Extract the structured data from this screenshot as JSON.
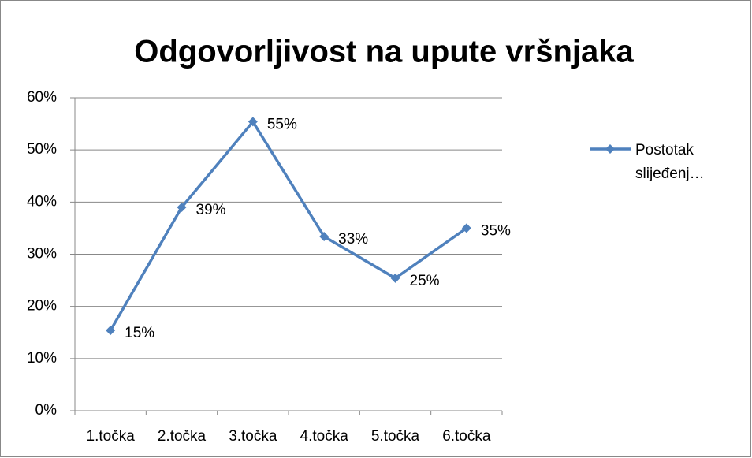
{
  "chart_data": {
    "type": "line",
    "title": "Odgovorljivost na upute vršnjaka",
    "categories": [
      "1.točka",
      "2.točka",
      "3.točka",
      "4.točka",
      "5.točka",
      "6.točka"
    ],
    "series": [
      {
        "name": "Postotak slijeđenj…",
        "color": "#4f81bd",
        "values": [
          15.4,
          39,
          55.4,
          33.4,
          25.4,
          35
        ],
        "value_labels": [
          "15%",
          "39%",
          "55%",
          "33%",
          "25%",
          "35%"
        ]
      }
    ],
    "ylim": [
      0,
      60
    ],
    "yticks": [
      {
        "value": 0,
        "label": "0%"
      },
      {
        "value": 10,
        "label": "10%"
      },
      {
        "value": 20,
        "label": "20%"
      },
      {
        "value": 30,
        "label": "30%"
      },
      {
        "value": 40,
        "label": "40%"
      },
      {
        "value": 50,
        "label": "50%"
      },
      {
        "value": 60,
        "label": "60%"
      }
    ],
    "grid": true,
    "legend": "right"
  }
}
